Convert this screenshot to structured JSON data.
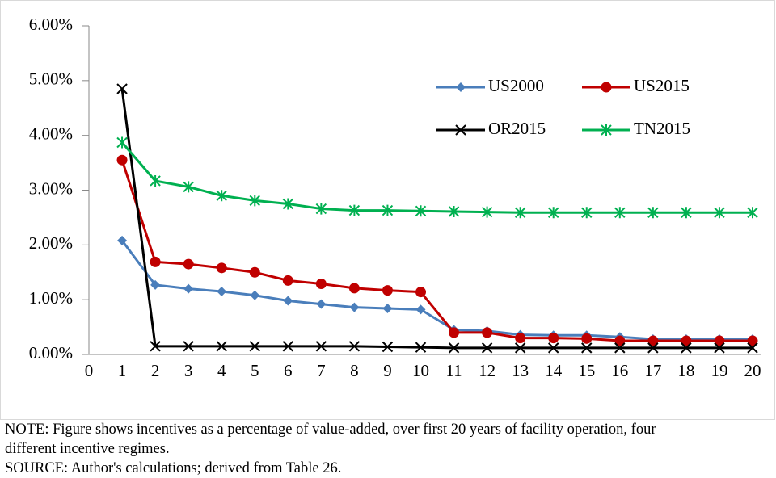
{
  "chart_data": {
    "type": "line",
    "x": [
      1,
      2,
      3,
      4,
      5,
      6,
      7,
      8,
      9,
      10,
      11,
      12,
      13,
      14,
      15,
      16,
      17,
      18,
      19,
      20
    ],
    "xlim": [
      0,
      20
    ],
    "xticks": [
      0,
      1,
      2,
      3,
      4,
      5,
      6,
      7,
      8,
      9,
      10,
      11,
      12,
      13,
      14,
      15,
      16,
      17,
      18,
      19,
      20
    ],
    "ylim": [
      0,
      6
    ],
    "yticks": [
      {
        "value": 0,
        "label": "0.00%"
      },
      {
        "value": 1,
        "label": "1.00%"
      },
      {
        "value": 2,
        "label": "2.00%"
      },
      {
        "value": 3,
        "label": "3.00%"
      },
      {
        "value": 4,
        "label": "4.00%"
      },
      {
        "value": 5,
        "label": "5.00%"
      },
      {
        "value": 6,
        "label": "6.00%"
      }
    ],
    "grid": false,
    "legend": "top-right",
    "series": [
      {
        "name": "US2000",
        "color": "#4a7ebb",
        "marker": "diamond",
        "values": [
          2.08,
          1.27,
          1.2,
          1.15,
          1.08,
          0.98,
          0.92,
          0.86,
          0.84,
          0.82,
          0.45,
          0.43,
          0.36,
          0.35,
          0.35,
          0.32,
          0.28,
          0.28,
          0.28,
          0.28
        ]
      },
      {
        "name": "US2015",
        "color": "#c00000",
        "marker": "circle",
        "values": [
          3.55,
          1.69,
          1.65,
          1.58,
          1.5,
          1.35,
          1.29,
          1.21,
          1.17,
          1.14,
          0.4,
          0.4,
          0.3,
          0.3,
          0.29,
          0.25,
          0.25,
          0.25,
          0.25,
          0.25
        ]
      },
      {
        "name": "OR2015",
        "color": "#000000",
        "marker": "x",
        "values": [
          4.85,
          0.15,
          0.15,
          0.15,
          0.15,
          0.15,
          0.15,
          0.15,
          0.14,
          0.13,
          0.12,
          0.12,
          0.12,
          0.12,
          0.12,
          0.12,
          0.12,
          0.12,
          0.12,
          0.12
        ]
      },
      {
        "name": "TN2015",
        "color": "#00b050",
        "marker": "star",
        "values": [
          3.87,
          3.17,
          3.06,
          2.9,
          2.81,
          2.75,
          2.66,
          2.63,
          2.63,
          2.62,
          2.61,
          2.6,
          2.59,
          2.59,
          2.59,
          2.59,
          2.59,
          2.59,
          2.59,
          2.59
        ]
      }
    ],
    "note": "NOTE: Figure shows incentives as a percentage of value-added, over first 20 years of facility operation, four different incentive regimes.",
    "source": "SOURCE: Author's calculations; derived from Table 26."
  }
}
